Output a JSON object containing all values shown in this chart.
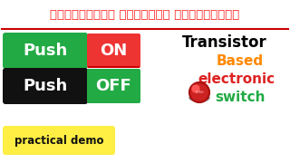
{
  "bg_color": "#1a1a1a",
  "title_text": "நீங்களும் சர்விஸ் செய்யலாம்",
  "title_color": "#ff2222",
  "separator_color": "#cc0000",
  "push_on_box_color": "#22aa44",
  "push_on_text": "Push",
  "push_on_text_color": "#ffffff",
  "on_box_color": "#ee3333",
  "on_text": "ON",
  "on_text_color": "#ffffff",
  "push_off_box_color": "#111111",
  "push_off_text": "Push",
  "push_off_text_color": "#ffffff",
  "off_box_color": "#22aa44",
  "off_text": "OFF",
  "off_text_color": "#ffffff",
  "on_underline_color": "#cc0000",
  "transistor_text": "Transistor",
  "transistor_color": "#000000",
  "based_text": "Based",
  "based_color": "#ff8800",
  "electronic_text": "electronic",
  "electronic_color": "#dd2222",
  "switch_text": "switch",
  "switch_color": "#22aa44",
  "practical_demo_text": "practical demo",
  "practical_demo_bg": "#ffee44",
  "practical_demo_text_color": "#111111",
  "button_color": "#cc2222",
  "button_highlight": "#ff6666",
  "button_shadow": "#884444"
}
